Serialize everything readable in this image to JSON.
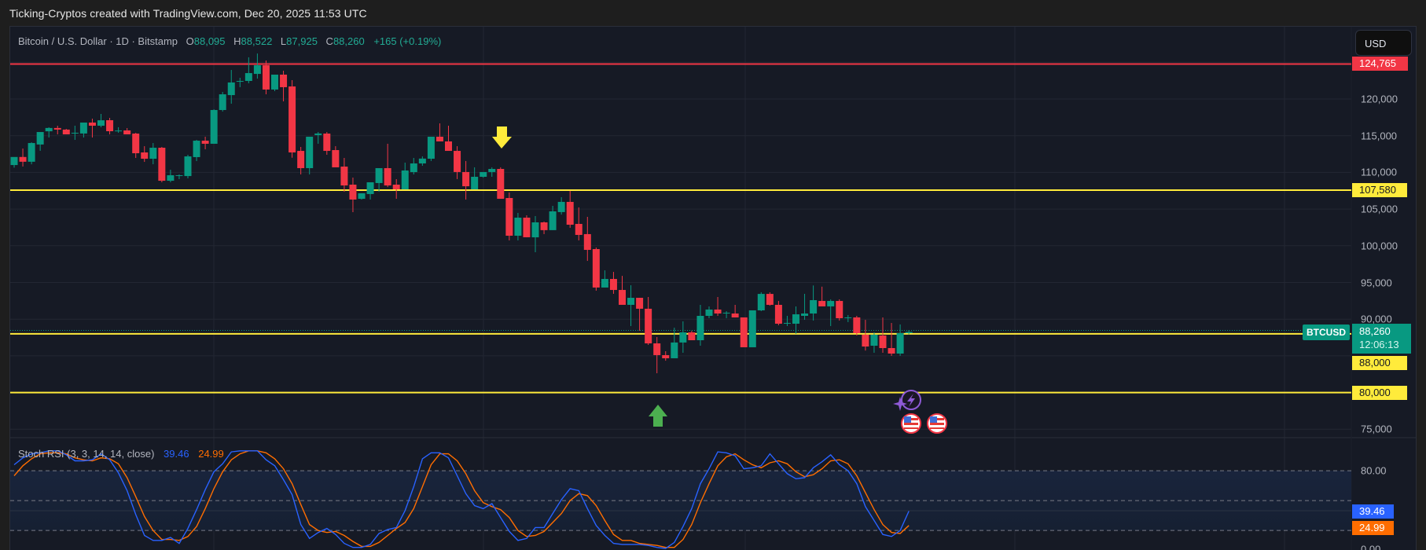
{
  "header": {
    "title": "Ticking-Cryptos created with TradingView.com, Dec 20, 2025 11:53 UTC"
  },
  "legend": {
    "symbol": "Bitcoin / U.S. Dollar · 1D · Bitstamp",
    "o_label": "O",
    "o": "88,095",
    "h_label": "H",
    "h": "88,522",
    "l_label": "L",
    "l": "87,925",
    "c_label": "C",
    "c": "88,260",
    "change": "+165 (+0.19%)"
  },
  "currency_button": "USD",
  "price_axis": {
    "ticks": [
      {
        "label": "120,000",
        "value": 120000
      },
      {
        "label": "115,000",
        "value": 115000
      },
      {
        "label": "110,000",
        "value": 110000
      },
      {
        "label": "105,000",
        "value": 105000
      },
      {
        "label": "100,000",
        "value": 100000
      },
      {
        "label": "95,000",
        "value": 95000
      },
      {
        "label": "90,000",
        "value": 90000
      },
      {
        "label": "75,000",
        "value": 75000
      }
    ],
    "hlines": [
      {
        "label": "124,765",
        "value": 124765,
        "color": "#f23645",
        "style": "red"
      },
      {
        "label": "107,580",
        "value": 107580,
        "color": "#ffeb3b",
        "style": "yellow"
      },
      {
        "label": "88,000",
        "value": 88000,
        "color": "#ffeb3b",
        "style": "yellow"
      },
      {
        "label": "80,000",
        "value": 80000,
        "color": "#ffeb3b",
        "style": "yellow"
      }
    ],
    "last_price": {
      "symbol": "BTCUSD",
      "price": "88,260",
      "countdown": "12:06:13",
      "value": 88260
    }
  },
  "stoch_rsi": {
    "title": "Stoch RSI (3, 3, 14, 14, close)",
    "k_value": "39.46",
    "d_value": "24.99",
    "axis": [
      {
        "label": "80.00",
        "value": 80
      },
      {
        "label": "0.00",
        "value": 0
      }
    ],
    "k_color": "#2962ff",
    "d_color": "#ff6d00"
  },
  "colors": {
    "up": "#089981",
    "down": "#f23645",
    "bg": "#161a25",
    "grid": "#232733"
  },
  "annotations": [
    {
      "type": "arrow-down",
      "color": "#ffeb3b",
      "candle_index": 56
    },
    {
      "type": "arrow-up",
      "color": "#4caf50",
      "candle_index": 74
    }
  ],
  "chart_data": [
    {
      "type": "candlestick",
      "title": "Bitcoin / U.S. Dollar · 1D · Bitstamp",
      "xlabel": "",
      "ylabel": "USD",
      "ylim": [
        72500,
        127000
      ],
      "grid": true,
      "fields": [
        "open",
        "high",
        "low",
        "close"
      ],
      "ohlc": [
        [
          111000,
          111550,
          110650,
          112100
        ],
        [
          112100,
          113250,
          110800,
          111450
        ],
        [
          111450,
          114100,
          111100,
          114000
        ],
        [
          113800,
          115400,
          112940,
          115500
        ],
        [
          115600,
          116150,
          114750,
          116050
        ],
        [
          116050,
          116360,
          115180,
          115830
        ],
        [
          115830,
          115930,
          115180,
          115180
        ],
        [
          115300,
          116360,
          114430,
          115400
        ],
        [
          115300,
          116790,
          114750,
          116790
        ],
        [
          116790,
          117320,
          114750,
          116360
        ],
        [
          116360,
          117960,
          116140,
          117100
        ],
        [
          117110,
          117430,
          115180,
          115610
        ],
        [
          115610,
          116150,
          115400,
          115700
        ],
        [
          115720,
          116040,
          115180,
          115180
        ],
        [
          115290,
          115390,
          111970,
          112610
        ],
        [
          112720,
          113570,
          111430,
          111860
        ],
        [
          111860,
          114000,
          111110,
          113360
        ],
        [
          113360,
          113470,
          108650,
          108860
        ],
        [
          108860,
          110360,
          108650,
          109610
        ],
        [
          109610,
          109720,
          109080,
          109610
        ],
        [
          109500,
          112400,
          109190,
          112180
        ],
        [
          112080,
          114430,
          111540,
          114320
        ],
        [
          114320,
          114860,
          113150,
          113900
        ],
        [
          113900,
          118600,
          113900,
          118500
        ],
        [
          118500,
          120960,
          118290,
          120640
        ],
        [
          120530,
          123960,
          119360,
          122250
        ],
        [
          122350,
          122890,
          121610,
          122460
        ],
        [
          122460,
          125680,
          122140,
          123530
        ],
        [
          123420,
          126200,
          122780,
          124600
        ],
        [
          124600,
          125250,
          120640,
          121290
        ],
        [
          121290,
          123320,
          121070,
          123320
        ],
        [
          123320,
          123850,
          119680,
          121610
        ],
        [
          121710,
          122570,
          112000,
          112720
        ],
        [
          112930,
          113470,
          109720,
          110580
        ],
        [
          110580,
          114320,
          109720,
          114860
        ],
        [
          115080,
          115500,
          113900,
          115300
        ],
        [
          115290,
          115500,
          112400,
          112930
        ],
        [
          113040,
          113570,
          111330,
          110690
        ],
        [
          110790,
          111970,
          107370,
          108220
        ],
        [
          108330,
          109290,
          104580,
          106300
        ],
        [
          106400,
          107150,
          106300,
          107150
        ],
        [
          107050,
          107690,
          106300,
          108650
        ],
        [
          108550,
          109290,
          107370,
          110580
        ],
        [
          110580,
          113900,
          108000,
          108220
        ],
        [
          108330,
          109080,
          106400,
          107690
        ],
        [
          107690,
          111330,
          107690,
          110260
        ],
        [
          110040,
          111970,
          109720,
          111220
        ],
        [
          111220,
          112180,
          110900,
          111880
        ],
        [
          111860,
          114540,
          111550,
          114860
        ],
        [
          114860,
          116680,
          114320,
          114220
        ],
        [
          114220,
          116360,
          113570,
          112930
        ],
        [
          112930,
          113570,
          109090,
          110050
        ],
        [
          110050,
          111550,
          106300,
          108110
        ],
        [
          107690,
          110690,
          107690,
          109400
        ],
        [
          109400,
          109830,
          109280,
          110050
        ],
        [
          110050,
          110690,
          109400,
          110470
        ],
        [
          110470,
          110690,
          106610,
          106400
        ],
        [
          106510,
          107260,
          100730,
          101370
        ],
        [
          101370,
          104480,
          100730,
          103830
        ],
        [
          103830,
          104150,
          101150,
          101160
        ],
        [
          101150,
          104050,
          99120,
          103190
        ],
        [
          103190,
          103300,
          101590,
          102130
        ],
        [
          102130,
          105440,
          102130,
          104690
        ],
        [
          104590,
          106620,
          104250,
          105980
        ],
        [
          105980,
          107480,
          102450,
          102870
        ],
        [
          102980,
          105230,
          100730,
          101480
        ],
        [
          101590,
          103940,
          97940,
          99440
        ],
        [
          99550,
          99760,
          93880,
          94310
        ],
        [
          94310,
          96650,
          94310,
          95480
        ],
        [
          95480,
          96440,
          93450,
          93980
        ],
        [
          93980,
          95900,
          92050,
          91950
        ],
        [
          91950,
          94620,
          89060,
          92910
        ],
        [
          92910,
          92910,
          88420,
          91420
        ],
        [
          91420,
          93020,
          86490,
          86700
        ],
        [
          86700,
          87560,
          82630,
          85100
        ],
        [
          85100,
          85630,
          84340,
          84670
        ],
        [
          84670,
          88840,
          84670,
          86820
        ],
        [
          86820,
          89700,
          85420,
          88200
        ],
        [
          88200,
          88420,
          87140,
          87130
        ],
        [
          87130,
          91950,
          86380,
          90450
        ],
        [
          90450,
          91740,
          90130,
          91310
        ],
        [
          91310,
          93020,
          90450,
          90770
        ],
        [
          90880,
          91090,
          90130,
          90880
        ],
        [
          90770,
          91950,
          90230,
          90230
        ],
        [
          90240,
          90240,
          87770,
          86170
        ],
        [
          86170,
          91090,
          86170,
          91200
        ],
        [
          91200,
          93660,
          91090,
          93440
        ],
        [
          93440,
          93660,
          91840,
          91950
        ],
        [
          91950,
          92480,
          89170,
          89380
        ],
        [
          89480,
          90450,
          89060,
          89490
        ],
        [
          89380,
          91740,
          88000,
          90660
        ],
        [
          90450,
          93450,
          89910,
          90770
        ],
        [
          90770,
          94590,
          89810,
          92590
        ],
        [
          92480,
          94430,
          92160,
          91740
        ],
        [
          91740,
          92690,
          89060,
          92480
        ],
        [
          92480,
          92700,
          89810,
          90130
        ],
        [
          90240,
          90560,
          89600,
          90240
        ],
        [
          90240,
          90450,
          87770,
          88090
        ],
        [
          87880,
          89910,
          85720,
          86270
        ],
        [
          86380,
          88200,
          85420,
          87880
        ],
        [
          87770,
          90230,
          85420,
          86060
        ],
        [
          86060,
          89480,
          84990,
          85310
        ],
        [
          85310,
          89280,
          85000,
          88100
        ],
        [
          88095,
          88522,
          87925,
          88260
        ]
      ]
    },
    {
      "type": "line",
      "title": "Stoch RSI (3, 3, 14, 14, close)",
      "ylim": [
        0,
        100
      ],
      "bands": {
        "upper": 80,
        "middle": 50,
        "lower": 20
      },
      "series": [
        {
          "name": "K",
          "color": "#2962ff",
          "values": [
            86,
            93,
            97,
            98,
            100,
            100,
            96,
            90,
            90,
            91,
            97,
            91,
            78,
            60,
            36,
            15,
            10,
            10,
            13,
            7,
            22,
            41,
            61,
            79,
            87,
            99,
            100,
            100,
            100,
            91,
            85,
            71,
            56,
            26,
            12,
            18,
            22,
            16,
            7,
            3,
            3,
            6,
            17,
            21,
            23,
            40,
            64,
            92,
            98,
            98,
            93,
            75,
            57,
            45,
            42,
            47,
            33,
            19,
            10,
            12,
            23,
            23,
            37,
            51,
            62,
            60,
            42,
            25,
            15,
            7,
            6,
            6,
            6,
            5,
            3,
            2,
            8,
            24,
            42,
            67,
            82,
            99,
            98,
            95,
            82,
            83,
            85,
            97,
            87,
            77,
            72,
            73,
            83,
            89,
            96,
            86,
            80,
            67,
            44,
            30,
            16,
            14,
            20,
            39.46
          ]
        },
        {
          "name": "D",
          "color": "#ff6d00",
          "values": [
            75,
            85,
            92,
            97,
            98,
            98,
            97,
            93,
            91,
            90,
            93,
            92,
            87,
            73,
            54,
            34,
            20,
            11,
            11,
            10,
            14,
            24,
            42,
            62,
            79,
            91,
            97,
            100,
            100,
            98,
            92,
            82,
            67,
            46,
            26,
            20,
            18,
            19,
            15,
            9,
            4,
            4,
            8,
            15,
            22,
            28,
            42,
            64,
            86,
            97,
            97,
            90,
            77,
            60,
            48,
            44,
            41,
            33,
            20,
            14,
            15,
            19,
            28,
            37,
            50,
            57,
            55,
            45,
            30,
            16,
            10,
            10,
            7,
            6,
            5,
            3,
            3,
            11,
            26,
            48,
            67,
            85,
            94,
            97,
            91,
            86,
            83,
            88,
            90,
            87,
            79,
            74,
            76,
            82,
            90,
            91,
            87,
            75,
            58,
            41,
            26,
            18,
            17,
            24.99
          ]
        }
      ]
    }
  ]
}
